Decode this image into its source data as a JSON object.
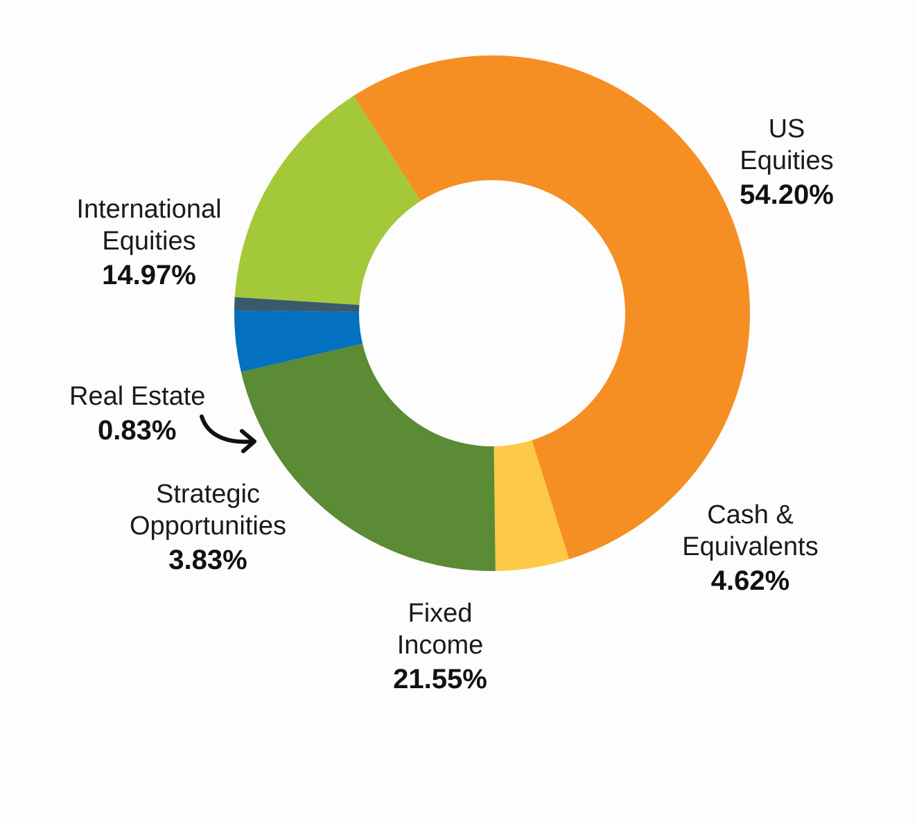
{
  "chart_data": {
    "type": "pie",
    "variant": "donut",
    "slices": [
      {
        "label_lines": [
          "US",
          "Equities"
        ],
        "value": 54.2,
        "display": "54.20%",
        "color": "#f58f23"
      },
      {
        "label_lines": [
          "Cash &",
          "Equivalents"
        ],
        "value": 4.62,
        "display": "4.62%",
        "color": "#fdc947"
      },
      {
        "label_lines": [
          "Fixed",
          "Income"
        ],
        "value": 21.55,
        "display": "21.55%",
        "color": "#5b8b35"
      },
      {
        "label_lines": [
          "Strategic",
          "Opportunities"
        ],
        "value": 3.83,
        "display": "3.83%",
        "color": "#0470c0"
      },
      {
        "label_lines": [
          "Real Estate"
        ],
        "value": 0.83,
        "display": "0.83%",
        "color": "#3a5a6c"
      },
      {
        "label_lines": [
          "International",
          "Equities"
        ],
        "value": 14.97,
        "display": "14.97%",
        "color": "#a3c93a"
      }
    ]
  }
}
